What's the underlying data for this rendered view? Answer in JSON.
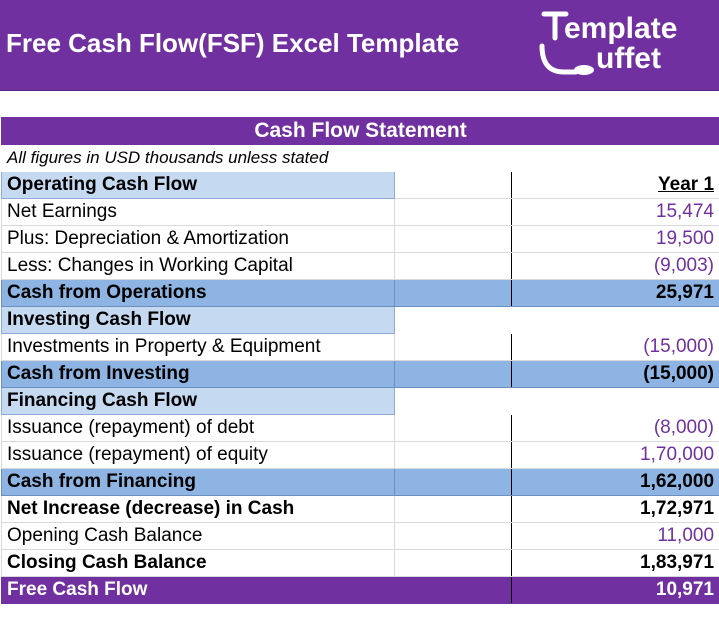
{
  "header": {
    "title": "Free Cash Flow(FSF) Excel Template",
    "logo_line1": "emplate",
    "logo_line2": "uffet"
  },
  "statement": {
    "title": "Cash Flow Statement",
    "note": "All figures in USD thousands unless stated",
    "year_label": "Year 1"
  },
  "rows": [
    {
      "label": "Operating Cash Flow",
      "value": "",
      "kind": "hdr"
    },
    {
      "label": "Net Earnings",
      "value": "15,474",
      "kind": "line"
    },
    {
      "label": "Plus: Depreciation & Amortization",
      "value": "19,500",
      "kind": "line"
    },
    {
      "label": "Less: Changes in Working Capital",
      "value": "(9,003)",
      "kind": "line"
    },
    {
      "label": "Cash from Operations",
      "value": "25,971",
      "kind": "sum"
    },
    {
      "label": "Investing Cash Flow",
      "value": "",
      "kind": "hdr"
    },
    {
      "label": "Investments in Property & Equipment",
      "value": "(15,000)",
      "kind": "line"
    },
    {
      "label": "Cash from Investing",
      "value": "(15,000)",
      "kind": "sum"
    },
    {
      "label": "Financing Cash Flow",
      "value": "",
      "kind": "hdr"
    },
    {
      "label": "Issuance (repayment) of debt",
      "value": "(8,000)",
      "kind": "line"
    },
    {
      "label": "Issuance (repayment) of equity",
      "value": "1,70,000",
      "kind": "line"
    },
    {
      "label": "Cash from Financing",
      "value": "1,62,000",
      "kind": "sum"
    },
    {
      "label": "Net Increase (decrease) in Cash",
      "value": "1,72,971",
      "kind": "bold"
    },
    {
      "label": "Opening Cash Balance",
      "value": "11,000",
      "kind": "line"
    },
    {
      "label": "Closing Cash Balance",
      "value": "1,83,971",
      "kind": "bold"
    },
    {
      "label": "Free Cash Flow",
      "value": "10,971",
      "kind": "fcf"
    }
  ]
}
